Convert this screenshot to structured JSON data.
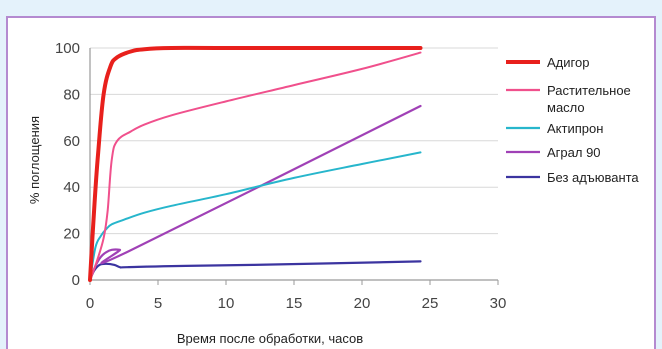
{
  "chart_data": {
    "type": "line",
    "xlabel": "Время после обработки, часов",
    "ylabel": "% поглощения",
    "xlim": [
      0,
      30
    ],
    "ylim": [
      0,
      100
    ],
    "xticks": [
      "0",
      "5",
      "10",
      "15",
      "20",
      "25",
      "30"
    ],
    "yticks": [
      "0",
      "20",
      "40",
      "60",
      "80",
      "100"
    ],
    "grid": true,
    "legend_position": "right",
    "series": [
      {
        "name": "Адигор",
        "color": "#e8201c",
        "x": [
          0,
          0.3,
          0.6,
          1,
          1.5,
          2,
          3,
          4,
          6,
          10,
          24.3
        ],
        "y": [
          0,
          30,
          55,
          80,
          92,
          96,
          98.5,
          99.5,
          100,
          100,
          100
        ]
      },
      {
        "name": "Растительное масло",
        "color": "#f0508c",
        "x": [
          0,
          0.5,
          1,
          1.3,
          1.6,
          2,
          3,
          4,
          6,
          10,
          15,
          20,
          24.3
        ],
        "y": [
          0,
          8,
          18,
          30,
          52,
          60,
          64,
          67,
          71,
          77,
          84,
          91,
          98
        ]
      },
      {
        "name": "Актипрон",
        "color": "#27b6cc",
        "x": [
          0,
          0.4,
          0.8,
          1.2,
          1.6,
          2.5,
          4,
          6,
          10,
          15,
          20,
          24.3
        ],
        "y": [
          0,
          14,
          19,
          22,
          24,
          26,
          29,
          32,
          37,
          44,
          50,
          55
        ]
      },
      {
        "name": "Аграл 90",
        "color": "#a041b6",
        "x": [
          0,
          0.4,
          0.8,
          1.2,
          1.6,
          2.2,
          2.7,
          24.3
        ],
        "y": [
          0,
          6,
          10,
          12,
          13,
          13,
          12,
          75
        ]
      },
      {
        "name": "Без адъюванта",
        "color": "#3b34a0",
        "x": [
          0,
          0.3,
          0.7,
          1.2,
          1.8,
          2.2,
          2.7,
          6,
          12,
          24.3
        ],
        "y": [
          0,
          4,
          6.5,
          7,
          6.5,
          5.5,
          5.5,
          6,
          6.5,
          8
        ]
      }
    ]
  }
}
